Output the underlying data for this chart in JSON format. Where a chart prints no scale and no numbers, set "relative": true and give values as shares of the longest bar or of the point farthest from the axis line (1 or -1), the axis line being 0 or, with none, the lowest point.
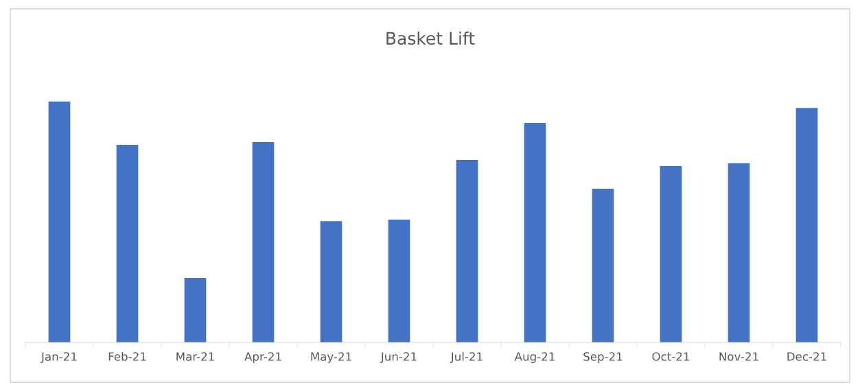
{
  "chart_data": {
    "type": "bar",
    "title": "Basket Lift",
    "relative": true,
    "categories": [
      "Jan-21",
      "Feb-21",
      "Mar-21",
      "Apr-21",
      "May-21",
      "Jun-21",
      "Jul-21",
      "Aug-21",
      "Sep-21",
      "Oct-21",
      "Nov-21",
      "Dec-21"
    ],
    "values": [
      1,
      0.821,
      0.268,
      0.832,
      0.504,
      0.51,
      0.758,
      0.912,
      0.638,
      0.732,
      0.744,
      0.974
    ],
    "color": "#4472c4"
  }
}
